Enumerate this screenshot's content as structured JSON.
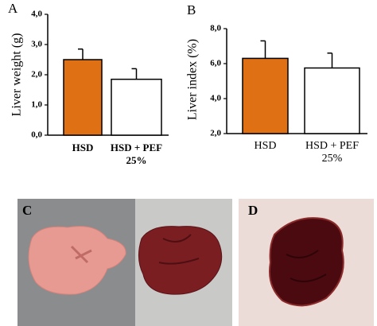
{
  "chart_data": [
    {
      "type": "bar",
      "panel_label": "A",
      "y_label": "Liver weight (g)",
      "categories": [
        "HSD",
        "HSD + PEF 25%"
      ],
      "series": [
        {
          "values": [
            2.5,
            1.85
          ],
          "errors": [
            0.35,
            0.35
          ],
          "colors": [
            "#e07014",
            "#ffffff"
          ]
        }
      ],
      "ylim": [
        0,
        4
      ],
      "yticks": [
        {
          "value": 0,
          "label": "0,0"
        },
        {
          "value": 1,
          "label": "1,0"
        },
        {
          "value": 2,
          "label": "2,0"
        },
        {
          "value": 3,
          "label": "3,0"
        },
        {
          "value": 4,
          "label": "4,0"
        }
      ]
    },
    {
      "type": "bar",
      "panel_label": "B",
      "y_label": "Liver index (%)",
      "categories": [
        "HSD",
        "HSD + PEF 25%"
      ],
      "series": [
        {
          "values": [
            6.3,
            5.75
          ],
          "errors": [
            1.0,
            0.85
          ],
          "colors": [
            "#e07014",
            "#ffffff"
          ]
        }
      ],
      "ylim": [
        2,
        8
      ],
      "yticks": [
        {
          "value": 2,
          "label": "2,0"
        },
        {
          "value": 4,
          "label": "4,0"
        },
        {
          "value": 6,
          "label": "6,0"
        },
        {
          "value": 8,
          "label": "8,0"
        }
      ]
    }
  ],
  "photo_panels": [
    {
      "label": "C"
    },
    {
      "label": "D"
    }
  ]
}
